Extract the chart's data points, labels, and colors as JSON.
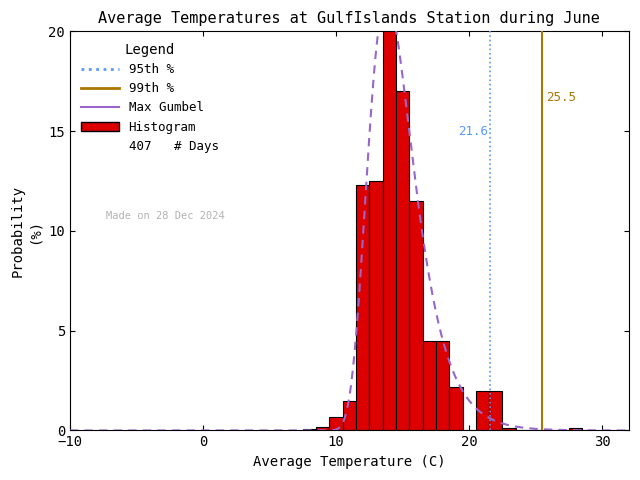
{
  "title": "Average Temperatures at GulfIslands Station during June",
  "xlabel": "Average Temperature (C)",
  "ylabel": "Probability\n(%)",
  "xlim": [
    -10,
    32
  ],
  "ylim": [
    0,
    20
  ],
  "xticks": [
    -10,
    0,
    10,
    20,
    30
  ],
  "yticks": [
    0,
    5,
    10,
    15,
    20
  ],
  "n_days": 407,
  "percentile_95": 21.6,
  "percentile_99": 25.5,
  "percentile_95_color": "#5599FF",
  "percentile_99_color": "#AA7700",
  "gumbel_color": "#9966CC",
  "hist_color": "#DD0000",
  "hist_edge_color": "#000000",
  "made_on_text": "Made on 28 Dec 2024",
  "made_on_color": "#AAAAAA",
  "bin_centers": [
    8,
    9,
    10,
    11,
    12,
    13,
    14,
    15,
    16,
    17,
    18,
    19,
    20,
    21,
    22,
    23,
    24,
    25,
    26,
    27,
    28,
    29
  ],
  "bin_heights": [
    0.05,
    0.15,
    0.7,
    1.5,
    12.3,
    12.5,
    20.2,
    17.0,
    11.5,
    4.5,
    4.5,
    2.2,
    0.0,
    2.0,
    2.0,
    0.1,
    0.0,
    0.0,
    0.0,
    0.0,
    0.1,
    0.0
  ],
  "gumbel_mu": 13.8,
  "gumbel_beta": 1.7,
  "background_color": "#FFFFFF"
}
